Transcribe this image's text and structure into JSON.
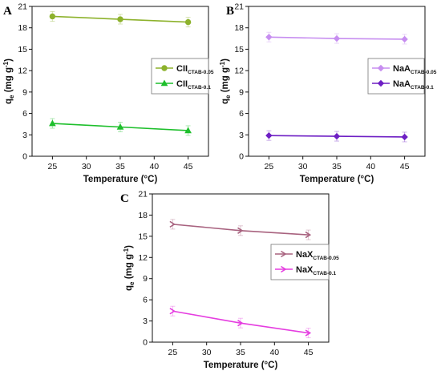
{
  "chart_data": [
    {
      "panel": "A",
      "type": "line",
      "xlabel": "Temperature (°C)",
      "ylabel": "q",
      "ylabel_sub": "e",
      "ylabel_rest": " (mg g",
      "ylabel_sup": "-1",
      "ylabel_close": ")",
      "xlim": [
        22,
        48
      ],
      "ylim": [
        0,
        21
      ],
      "xticks": [
        25,
        30,
        35,
        40,
        45
      ],
      "yticks": [
        0,
        3,
        6,
        9,
        12,
        15,
        18,
        21
      ],
      "legend_position": "center-right",
      "series": [
        {
          "name": "CII",
          "name_sub": "CTAB-0.05",
          "color": "#8db22c",
          "marker": "circle",
          "x": [
            25,
            35,
            45
          ],
          "y": [
            19.6,
            19.2,
            18.8
          ]
        },
        {
          "name": "CII",
          "name_sub": "CTAB-0.1",
          "color": "#1ebf2c",
          "marker": "triangle-up",
          "x": [
            25,
            35,
            45
          ],
          "y": [
            4.6,
            4.1,
            3.6
          ]
        }
      ]
    },
    {
      "panel": "B",
      "type": "line",
      "xlabel": "Temperature (°C)",
      "ylabel": "q",
      "ylabel_sub": "e",
      "ylabel_rest": " (mg g",
      "ylabel_sup": "-1",
      "ylabel_close": ")",
      "xlim": [
        22,
        48
      ],
      "ylim": [
        0,
        21
      ],
      "xticks": [
        25,
        30,
        35,
        40,
        45
      ],
      "yticks": [
        0,
        3,
        6,
        9,
        12,
        15,
        18,
        21
      ],
      "legend_position": "center-right",
      "series": [
        {
          "name": "NaA",
          "name_sub": "CTAB-0.05",
          "color": "#c78ef0",
          "marker": "diamond",
          "x": [
            25,
            35,
            45
          ],
          "y": [
            16.7,
            16.5,
            16.4
          ]
        },
        {
          "name": "NaA",
          "name_sub": "CTAB-0.1",
          "color": "#6e1fc4",
          "marker": "diamond",
          "x": [
            25,
            35,
            45
          ],
          "y": [
            2.9,
            2.8,
            2.7
          ]
        }
      ]
    },
    {
      "panel": "C",
      "type": "line",
      "xlabel": "Temperature (°C)",
      "ylabel": "q",
      "ylabel_sub": "e",
      "ylabel_rest": " (mg g",
      "ylabel_sup": "-1",
      "ylabel_close": ")",
      "xlim": [
        22,
        48
      ],
      "ylim": [
        0,
        21
      ],
      "xticks": [
        25,
        30,
        35,
        40,
        45
      ],
      "yticks": [
        0,
        3,
        6,
        9,
        12,
        15,
        18,
        21
      ],
      "legend_position": "center-right",
      "series": [
        {
          "name": "NaX",
          "name_sub": "CTAB-0.05",
          "color": "#a8627f",
          "marker": "tri-right",
          "x": [
            25,
            35,
            45
          ],
          "y": [
            16.7,
            15.8,
            15.2
          ]
        },
        {
          "name": "NaX",
          "name_sub": "CTAB-0.1",
          "color": "#e53de0",
          "marker": "tri-right",
          "x": [
            25,
            35,
            45
          ],
          "y": [
            4.4,
            2.7,
            1.3
          ]
        }
      ]
    }
  ]
}
